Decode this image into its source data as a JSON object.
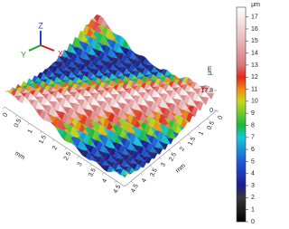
{
  "chart_data": {
    "type": "surface",
    "x_label": "mm",
    "y_label": "mm",
    "z_label": "μm",
    "xticks": [
      0,
      0.5,
      1,
      1.5,
      2,
      2.5,
      3,
      3.5,
      4,
      4.5
    ],
    "yticks": [
      0,
      0.5,
      1,
      1.5,
      2,
      2.5,
      3,
      3.5,
      4,
      4.5
    ],
    "xlim": [
      0,
      4.5
    ],
    "ylim": [
      0,
      4.5
    ],
    "zlim": [
      0,
      17.8
    ],
    "zticks": [
      0,
      17.8
    ],
    "triad": {
      "x": "X",
      "y": "Y",
      "z": "Z"
    },
    "colorbar": {
      "label": "μm",
      "lim": [
        0,
        17.8
      ],
      "ticks": [
        0,
        1,
        2,
        3,
        4,
        5,
        6,
        7,
        8,
        9,
        10,
        11,
        12,
        13,
        14,
        15,
        16,
        17
      ],
      "colormap": [
        {
          "value": 0,
          "color": "#000000"
        },
        {
          "value": 2,
          "color": "#3a3a3a"
        },
        {
          "value": 3,
          "color": "#1a1a8c"
        },
        {
          "value": 5,
          "color": "#1e5ad6"
        },
        {
          "value": 7,
          "color": "#18c8d8"
        },
        {
          "value": 8,
          "color": "#19b83c"
        },
        {
          "value": 10,
          "color": "#c8d81e"
        },
        {
          "value": 11,
          "color": "#f08a14"
        },
        {
          "value": 12,
          "color": "#e0281e"
        },
        {
          "value": 13,
          "color": "#d87878"
        },
        {
          "value": 15,
          "color": "#e8b8b8"
        },
        {
          "value": 17.8,
          "color": "#ffffff"
        }
      ]
    }
  }
}
